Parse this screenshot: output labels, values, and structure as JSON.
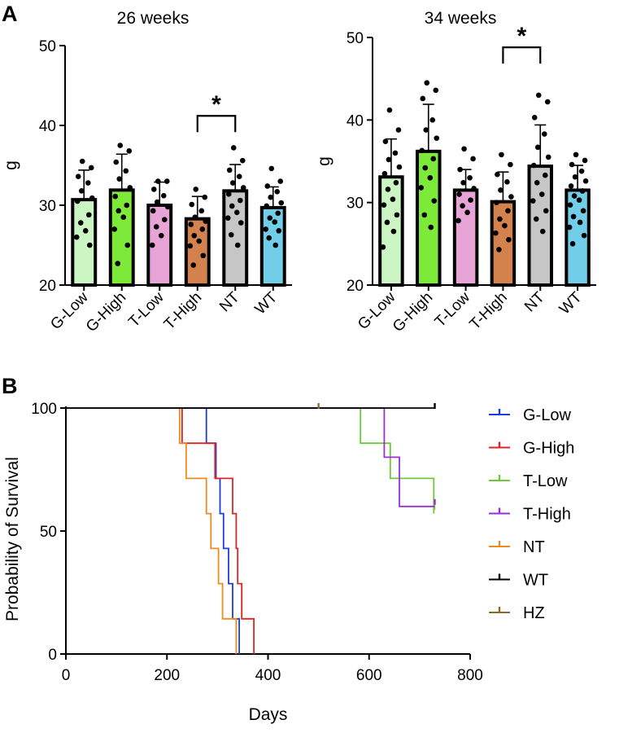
{
  "panel_a_label": "A",
  "panel_b_label": "B",
  "chart_data": [
    {
      "type": "bar",
      "title": "26 weeks",
      "ylabel": "g",
      "xlabel": "",
      "ylim": [
        20,
        50
      ],
      "yticks": [
        20,
        30,
        40,
        50
      ],
      "categories": [
        "G-Low",
        "G-High",
        "T-Low",
        "T-High",
        "NT",
        "WT"
      ],
      "colors": [
        "#ccf5c4",
        "#7dea3a",
        "#e8a4d6",
        "#d4824d",
        "#c6c6c6",
        "#71cde8"
      ],
      "values": [
        30.7,
        31.9,
        30.0,
        28.3,
        31.8,
        29.7
      ],
      "sd": [
        3.7,
        4.5,
        2.9,
        2.8,
        3.3,
        2.6
      ],
      "points": [
        [
          35.5,
          34.7,
          33.6,
          32.8,
          31.8,
          30.9,
          30.5,
          28.8,
          27.8,
          26.8,
          26.0,
          25.0
        ],
        [
          37.5,
          36.8,
          35.4,
          34.3,
          33.3,
          32.2,
          31.1,
          30.0,
          29.3,
          28.5,
          27.0,
          25.0,
          22.7
        ],
        [
          33.0,
          33.0,
          32.0,
          31.2,
          30.4,
          29.8,
          29.3,
          28.2,
          27.3,
          26.2,
          25.0
        ],
        [
          32.0,
          31.0,
          30.1,
          29.3,
          28.5,
          28.0,
          27.6,
          27.0,
          26.2,
          25.5,
          24.9,
          23.7,
          22.5
        ],
        [
          37.2,
          35.6,
          34.4,
          33.6,
          32.8,
          32.2,
          31.4,
          30.6,
          29.9,
          29.1,
          28.4,
          27.8,
          26.3,
          25.0
        ],
        [
          34.6,
          33.0,
          32.4,
          31.7,
          31.0,
          30.3,
          29.9,
          29.0,
          28.4,
          27.9,
          27.0,
          26.8,
          25.9,
          25.0
        ]
      ],
      "significance": {
        "from": 3,
        "to": 4,
        "label": "*",
        "y": 41.2
      }
    },
    {
      "type": "bar",
      "title": "34 weeks",
      "ylabel": "g",
      "xlabel": "",
      "ylim": [
        20,
        50
      ],
      "yticks": [
        20,
        30,
        40,
        50
      ],
      "categories": [
        "G-Low",
        "G-High",
        "T-Low",
        "T-High",
        "NT",
        "WT"
      ],
      "colors": [
        "#ccf5c4",
        "#7dea3a",
        "#e8a4d6",
        "#d4824d",
        "#c6c6c6",
        "#71cde8"
      ],
      "values": [
        33.1,
        36.2,
        31.5,
        30.1,
        34.4,
        31.5
      ],
      "sd": [
        4.6,
        5.7,
        2.5,
        3.6,
        5.0,
        3.0
      ],
      "points": [
        [
          41.2,
          38.8,
          37.4,
          36.0,
          35.2,
          34.3,
          33.5,
          32.4,
          31.6,
          30.4,
          29.7,
          28.5,
          27.6,
          26.5,
          24.6
        ],
        [
          44.5,
          43.6,
          42.6,
          40.0,
          38.8,
          37.8,
          36.3,
          35.3,
          34.2,
          33.0,
          31.8,
          30.2,
          28.5,
          27.0
        ],
        [
          36.5,
          35.3,
          34.0,
          33.0,
          32.4,
          31.7,
          31.0,
          30.3,
          29.6,
          28.8,
          27.8
        ],
        [
          35.8,
          34.6,
          33.4,
          32.5,
          31.5,
          30.7,
          30.0,
          29.0,
          28.0,
          27.2,
          26.3,
          25.5,
          24.3
        ],
        [
          43.0,
          42.2,
          40.3,
          38.3,
          36.7,
          35.5,
          34.5,
          33.3,
          32.4,
          31.0,
          30.2,
          29.0,
          28.0,
          26.5
        ],
        [
          35.8,
          35.1,
          34.6,
          33.8,
          33.1,
          32.6,
          32.0,
          31.4,
          30.8,
          30.3,
          29.7,
          29.0,
          28.3,
          27.6,
          27.0,
          26.0,
          25.0
        ]
      ],
      "significance": {
        "from": 3,
        "to": 4,
        "label": "*",
        "y": 48.8
      }
    },
    {
      "type": "line",
      "subtype": "kaplan-meier",
      "title": "",
      "xlabel": "Days",
      "ylabel": "Probability of Survival",
      "xlim": [
        0,
        800
      ],
      "ylim": [
        0,
        100
      ],
      "xticks": [
        0,
        200,
        400,
        600,
        800
      ],
      "yticks": [
        0,
        50,
        100
      ],
      "series": [
        {
          "name": "G-Low",
          "color": "#1a3de0",
          "steps": [
            [
              0,
              100
            ],
            [
              278,
              100
            ],
            [
              278,
              85.7
            ],
            [
              297,
              85.7
            ],
            [
              297,
              71.4
            ],
            [
              305,
              71.4
            ],
            [
              305,
              57.1
            ],
            [
              312,
              57.1
            ],
            [
              312,
              42.9
            ],
            [
              322,
              42.9
            ],
            [
              322,
              28.6
            ],
            [
              330,
              28.6
            ],
            [
              330,
              14.3
            ],
            [
              343,
              14.3
            ],
            [
              343,
              0
            ]
          ],
          "censor": []
        },
        {
          "name": "G-High",
          "color": "#e02424",
          "steps": [
            [
              0,
              100
            ],
            [
              230,
              100
            ],
            [
              230,
              85.7
            ],
            [
              295,
              85.7
            ],
            [
              295,
              71.4
            ],
            [
              330,
              71.4
            ],
            [
              330,
              57.1
            ],
            [
              337,
              57.1
            ],
            [
              337,
              42.9
            ],
            [
              340,
              42.9
            ],
            [
              340,
              28.6
            ],
            [
              348,
              28.6
            ],
            [
              348,
              14.3
            ],
            [
              372,
              14.3
            ],
            [
              372,
              0
            ]
          ],
          "censor": []
        },
        {
          "name": "T-Low",
          "color": "#6bc93a",
          "steps": [
            [
              0,
              100
            ],
            [
              583,
              100
            ],
            [
              583,
              85.7
            ],
            [
              642,
              85.7
            ],
            [
              642,
              71.4
            ],
            [
              728,
              71.4
            ],
            [
              728,
              57.1
            ]
          ],
          "censor": [
            [
              729,
              59
            ]
          ]
        },
        {
          "name": "T-High",
          "color": "#9b2fd6",
          "steps": [
            [
              0,
              100
            ],
            [
              630,
              100
            ],
            [
              630,
              80
            ],
            [
              660,
              80
            ],
            [
              660,
              60
            ],
            [
              730,
              60
            ]
          ],
          "censor": [
            [
              730,
              61
            ]
          ]
        },
        {
          "name": "NT",
          "color": "#ef8a1f",
          "steps": [
            [
              0,
              100
            ],
            [
              225,
              100
            ],
            [
              225,
              85.7
            ],
            [
              238,
              85.7
            ],
            [
              238,
              71.4
            ],
            [
              278,
              71.4
            ],
            [
              278,
              57.1
            ],
            [
              287,
              57.1
            ],
            [
              287,
              42.9
            ],
            [
              302,
              42.9
            ],
            [
              302,
              28.6
            ],
            [
              310,
              28.6
            ],
            [
              310,
              14.3
            ],
            [
              337,
              14.3
            ],
            [
              337,
              0
            ]
          ],
          "censor": []
        },
        {
          "name": "WT",
          "color": "#000000",
          "steps": [
            [
              0,
              100
            ],
            [
              730,
              100
            ]
          ],
          "censor": [
            [
              730,
              100
            ]
          ]
        },
        {
          "name": "HZ",
          "color": "#8c6a2c",
          "steps": [],
          "censor": [
            [
              500,
              100
            ]
          ]
        }
      ],
      "legend_position": "right"
    }
  ]
}
